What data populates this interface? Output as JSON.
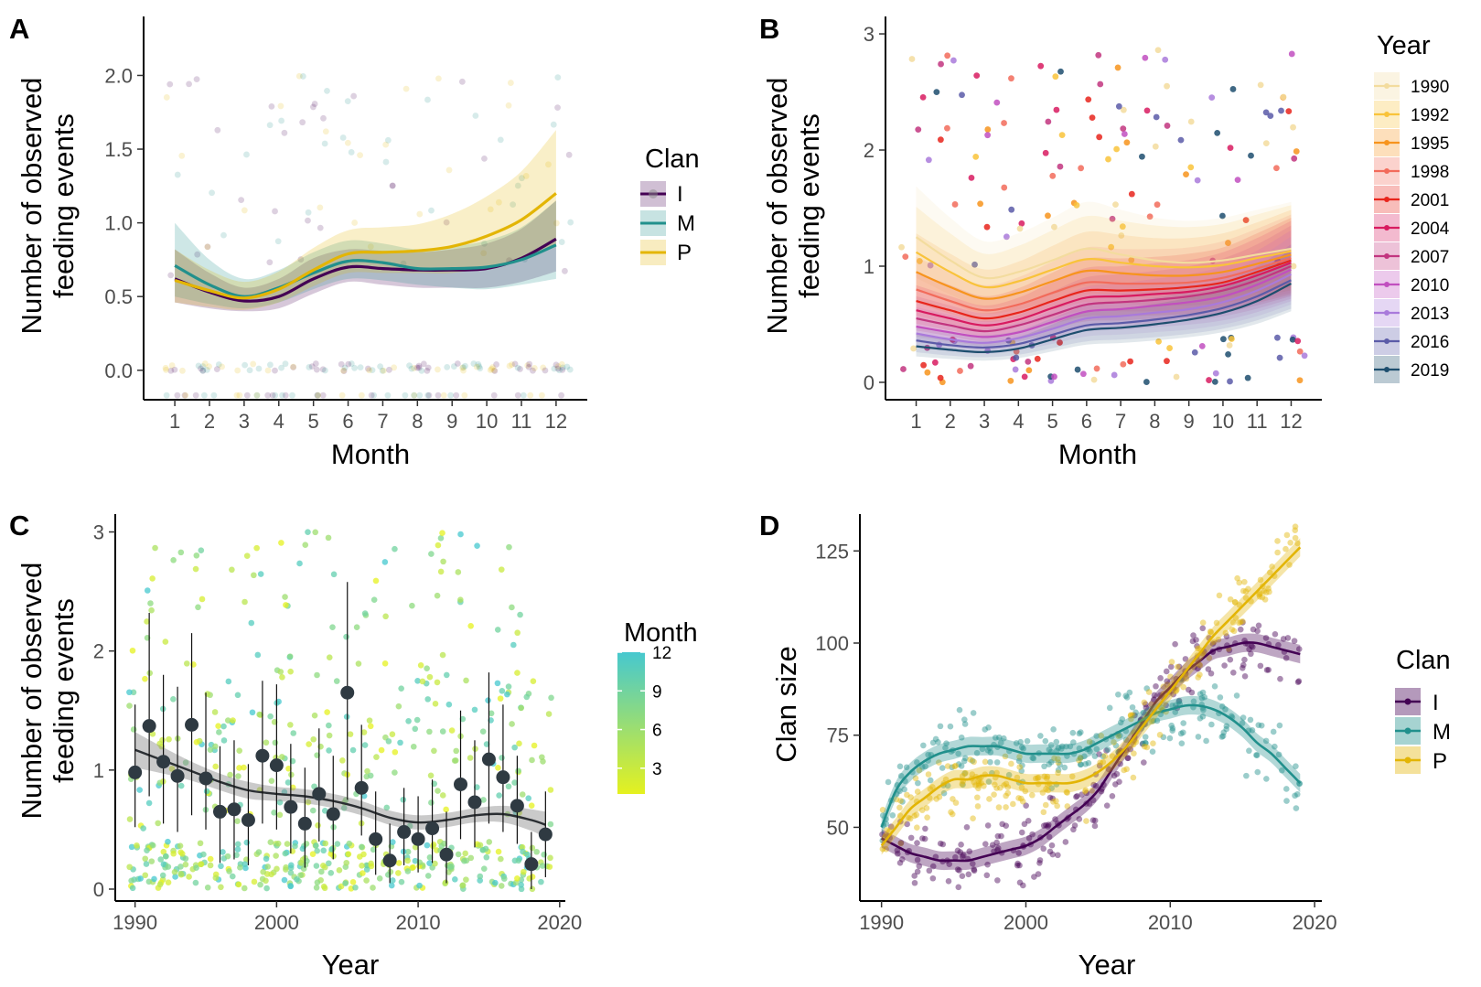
{
  "chart_data": [
    {
      "panel": "A",
      "type": "line",
      "xlabel": "Month",
      "ylabel": "Number of observed\nfeeding events",
      "xlim": [
        0.1,
        12.9
      ],
      "ylim": [
        -0.2,
        2.4
      ],
      "x_ticks": [
        1,
        2,
        3,
        4,
        5,
        6,
        7,
        8,
        9,
        10,
        11,
        12
      ],
      "y_ticks": [
        0.0,
        0.5,
        1.0,
        1.5,
        2.0
      ],
      "y_tick_labels": [
        "0.0",
        "0.5",
        "1.0",
        "1.5",
        "2.0"
      ],
      "x": [
        1,
        2,
        3,
        4,
        5,
        6,
        7,
        8,
        9,
        10,
        11,
        12
      ],
      "series": [
        {
          "name": "I",
          "color": "#440154",
          "values": [
            0.62,
            0.53,
            0.47,
            0.5,
            0.62,
            0.7,
            0.69,
            0.68,
            0.68,
            0.69,
            0.76,
            0.89
          ],
          "lower": [
            0.46,
            0.42,
            0.4,
            0.42,
            0.52,
            0.6,
            0.58,
            0.56,
            0.56,
            0.56,
            0.6,
            0.67
          ],
          "upper": [
            0.82,
            0.66,
            0.56,
            0.62,
            0.76,
            0.82,
            0.81,
            0.8,
            0.82,
            0.86,
            0.96,
            1.15
          ]
        },
        {
          "name": "M",
          "color": "#21908C",
          "values": [
            0.71,
            0.58,
            0.5,
            0.56,
            0.66,
            0.74,
            0.73,
            0.69,
            0.69,
            0.7,
            0.75,
            0.85
          ],
          "lower": [
            0.5,
            0.45,
            0.42,
            0.46,
            0.55,
            0.62,
            0.61,
            0.58,
            0.56,
            0.55,
            0.58,
            0.62
          ],
          "upper": [
            1.0,
            0.75,
            0.62,
            0.68,
            0.8,
            0.88,
            0.86,
            0.82,
            0.84,
            0.88,
            0.97,
            1.15
          ]
        },
        {
          "name": "P",
          "color": "#E3B505",
          "values": [
            0.61,
            0.54,
            0.49,
            0.55,
            0.68,
            0.79,
            0.8,
            0.81,
            0.84,
            0.91,
            1.02,
            1.2
          ],
          "lower": [
            0.46,
            0.43,
            0.41,
            0.46,
            0.57,
            0.66,
            0.66,
            0.66,
            0.66,
            0.7,
            0.76,
            0.85
          ],
          "upper": [
            0.82,
            0.68,
            0.6,
            0.67,
            0.83,
            0.95,
            0.97,
            0.99,
            1.06,
            1.18,
            1.35,
            1.63
          ]
        }
      ],
      "legend_title": "Clan",
      "legend_position": "right"
    },
    {
      "panel": "B",
      "type": "line",
      "xlabel": "Month",
      "ylabel": "Number of observed\nfeeding events",
      "xlim": [
        0.1,
        12.9
      ],
      "ylim": [
        -0.15,
        3.15
      ],
      "x_ticks": [
        1,
        2,
        3,
        4,
        5,
        6,
        7,
        8,
        9,
        10,
        11,
        12
      ],
      "y_ticks": [
        0,
        1,
        2,
        3
      ],
      "x": [
        1,
        2,
        3,
        4,
        5,
        6,
        7,
        8,
        9,
        10,
        11,
        12
      ],
      "base_curve": [
        1.25,
        1.05,
        0.9,
        0.95,
        1.05,
        1.15,
        1.1,
        1.05,
        1.03,
        1.05,
        1.1,
        1.15
      ],
      "series": [
        {
          "name": "1990",
          "color": "#F3DC9E",
          "values": [
            1.25,
            1.05,
            0.9,
            0.95,
            1.05,
            1.15,
            1.1,
            1.05,
            1.03,
            1.05,
            1.1,
            1.15
          ]
        },
        {
          "name": "1992",
          "color": "#F9C33A",
          "values": [
            1.12,
            0.95,
            0.82,
            0.87,
            0.97,
            1.06,
            1.03,
            1.0,
            0.99,
            1.01,
            1.07,
            1.13
          ]
        },
        {
          "name": "1995",
          "color": "#F7941D",
          "values": [
            0.95,
            0.82,
            0.72,
            0.77,
            0.87,
            0.96,
            0.94,
            0.92,
            0.92,
            0.95,
            1.02,
            1.1
          ]
        },
        {
          "name": "1998",
          "color": "#F26B5B",
          "values": [
            0.8,
            0.7,
            0.62,
            0.67,
            0.77,
            0.86,
            0.85,
            0.85,
            0.86,
            0.9,
            0.98,
            1.07
          ]
        },
        {
          "name": "2001",
          "color": "#E8251C",
          "values": [
            0.7,
            0.62,
            0.55,
            0.6,
            0.7,
            0.79,
            0.79,
            0.8,
            0.82,
            0.86,
            0.95,
            1.05
          ]
        },
        {
          "name": "2004",
          "color": "#D81B60",
          "values": [
            0.62,
            0.55,
            0.49,
            0.54,
            0.64,
            0.73,
            0.74,
            0.76,
            0.78,
            0.83,
            0.92,
            1.03
          ]
        },
        {
          "name": "2007",
          "color": "#C2357F",
          "values": [
            0.55,
            0.49,
            0.44,
            0.49,
            0.58,
            0.67,
            0.69,
            0.71,
            0.74,
            0.79,
            0.88,
            1.0
          ]
        },
        {
          "name": "2010",
          "color": "#C14FBF",
          "values": [
            0.48,
            0.43,
            0.39,
            0.43,
            0.52,
            0.61,
            0.63,
            0.66,
            0.69,
            0.74,
            0.84,
            0.97
          ]
        },
        {
          "name": "2013",
          "color": "#A97ADB",
          "values": [
            0.42,
            0.37,
            0.34,
            0.38,
            0.46,
            0.55,
            0.57,
            0.6,
            0.63,
            0.69,
            0.79,
            0.93
          ]
        },
        {
          "name": "2016",
          "color": "#5B5BA8",
          "values": [
            0.36,
            0.32,
            0.3,
            0.33,
            0.41,
            0.49,
            0.51,
            0.54,
            0.58,
            0.64,
            0.74,
            0.88
          ]
        },
        {
          "name": "2019",
          "color": "#1D4E6E",
          "values": [
            0.31,
            0.28,
            0.26,
            0.29,
            0.37,
            0.45,
            0.47,
            0.5,
            0.54,
            0.6,
            0.7,
            0.85
          ]
        }
      ],
      "legend_title": "Year",
      "legend_position": "right"
    },
    {
      "panel": "C",
      "type": "scatter",
      "xlabel": "Year",
      "ylabel": "Number of observed\nfeeding events",
      "xlim": [
        1988.6,
        2020.4
      ],
      "ylim": [
        -0.1,
        3.15
      ],
      "x_ticks": [
        1990,
        2000,
        2010,
        2020
      ],
      "y_ticks": [
        0,
        1,
        2,
        3
      ],
      "means": {
        "x": [
          1990,
          1991,
          1992,
          1993,
          1994,
          1995,
          1996,
          1997,
          1998,
          1999,
          2000,
          2001,
          2002,
          2003,
          2004,
          2005,
          2006,
          2007,
          2008,
          2009,
          2010,
          2011,
          2012,
          2013,
          2014,
          2015,
          2016,
          2017,
          2018,
          2019
        ],
        "values": [
          0.98,
          1.37,
          1.07,
          0.95,
          1.38,
          0.93,
          0.65,
          0.67,
          0.58,
          1.12,
          1.04,
          0.69,
          0.55,
          0.8,
          0.63,
          1.65,
          0.85,
          0.42,
          0.24,
          0.48,
          0.42,
          0.51,
          0.29,
          0.88,
          0.73,
          1.09,
          0.94,
          0.7,
          0.21,
          0.46
        ],
        "lower": [
          0.52,
          0.78,
          0.55,
          0.48,
          0.62,
          0.5,
          0.22,
          0.25,
          0.2,
          0.55,
          0.5,
          0.3,
          0.18,
          0.4,
          0.25,
          0.75,
          0.45,
          0.12,
          0.05,
          0.2,
          0.14,
          0.22,
          0.05,
          0.42,
          0.35,
          0.55,
          0.48,
          0.38,
          0.0,
          0.1
        ],
        "upper": [
          1.55,
          2.32,
          1.8,
          1.7,
          2.15,
          1.65,
          1.2,
          1.25,
          1.05,
          1.75,
          1.72,
          1.22,
          1.02,
          1.35,
          1.12,
          2.58,
          1.38,
          0.82,
          0.55,
          0.85,
          0.78,
          0.92,
          0.65,
          1.5,
          1.25,
          1.82,
          1.55,
          1.12,
          0.48,
          0.82
        ]
      },
      "trend": {
        "x": [
          1990,
          1992,
          1994,
          1996,
          1998,
          2000,
          2002,
          2004,
          2006,
          2008,
          2010,
          2012,
          2014,
          2016,
          2018,
          2019
        ],
        "values": [
          1.17,
          1.08,
          0.99,
          0.9,
          0.83,
          0.8,
          0.78,
          0.74,
          0.68,
          0.6,
          0.56,
          0.58,
          0.62,
          0.63,
          0.58,
          0.54
        ],
        "se": [
          0.15,
          0.11,
          0.08,
          0.07,
          0.07,
          0.06,
          0.06,
          0.06,
          0.06,
          0.06,
          0.06,
          0.06,
          0.06,
          0.07,
          0.09,
          0.11
        ]
      },
      "legend_title": "Month",
      "legend_ticks": [
        3,
        6,
        9,
        12
      ],
      "color_low": "#E5F11F",
      "color_high": "#46C8CF",
      "legend_position": "right"
    },
    {
      "panel": "D",
      "type": "line",
      "xlabel": "Year",
      "ylabel": "Clan size",
      "xlim": [
        1988.5,
        2020.5
      ],
      "ylim": [
        30,
        135
      ],
      "x_ticks": [
        1990,
        2000,
        2010,
        2020
      ],
      "y_ticks": [
        50,
        75,
        100,
        125
      ],
      "x": [
        1990,
        1991,
        1992,
        1993,
        1994,
        1995,
        1996,
        1997,
        1998,
        1999,
        2000,
        2001,
        2002,
        2003,
        2004,
        2005,
        2006,
        2007,
        2008,
        2009,
        2010,
        2011,
        2012,
        2013,
        2014,
        2015,
        2016,
        2017,
        2018,
        2019
      ],
      "series": [
        {
          "name": "I",
          "color": "#440154",
          "values": [
            47,
            45,
            43,
            42,
            41,
            41,
            41,
            42,
            43,
            44,
            45,
            47,
            50,
            53,
            56,
            60,
            66,
            72,
            78,
            84,
            88,
            92,
            95,
            98,
            99,
            100,
            100,
            99,
            98,
            97
          ]
        },
        {
          "name": "M",
          "color": "#21908C",
          "values": [
            50,
            60,
            65,
            68,
            70,
            71,
            72,
            72,
            72,
            71,
            70,
            70,
            70,
            70,
            71,
            73,
            75,
            77,
            79,
            81,
            82,
            83,
            83,
            82,
            80,
            77,
            73,
            70,
            66,
            62
          ]
        },
        {
          "name": "P",
          "color": "#E3B505",
          "values": [
            45,
            50,
            55,
            58,
            61,
            63,
            63,
            64,
            64,
            63,
            62,
            62,
            62,
            62,
            63,
            65,
            68,
            72,
            77,
            82,
            87,
            92,
            97,
            102,
            106,
            110,
            114,
            118,
            122,
            126
          ]
        }
      ],
      "legend_title": "Clan",
      "legend_position": "right"
    }
  ],
  "panels": {
    "A": {
      "tag": "A",
      "ylabel_1": "Number of observed",
      "ylabel_2": "feeding events",
      "xlabel": "Month",
      "legend_title": "Clan"
    },
    "B": {
      "tag": "B",
      "ylabel_1": "Number of observed",
      "ylabel_2": "feeding events",
      "xlabel": "Month",
      "legend_title": "Year"
    },
    "C": {
      "tag": "C",
      "ylabel_1": "Number of observed",
      "ylabel_2": "feeding events",
      "xlabel": "Year",
      "legend_title": "Month"
    },
    "D": {
      "tag": "D",
      "ylabel": "Clan size",
      "xlabel": "Year",
      "legend_title": "Clan"
    }
  }
}
